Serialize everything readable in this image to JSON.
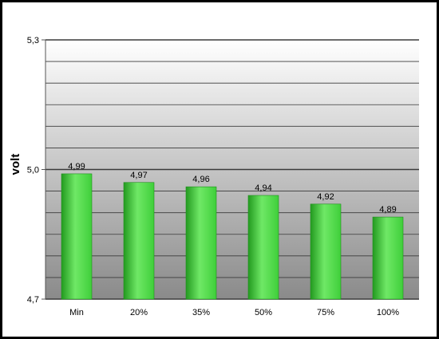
{
  "chart_data": {
    "type": "bar",
    "categories": [
      "Min",
      "20%",
      "35%",
      "50%",
      "75%",
      "100%"
    ],
    "values": [
      4.99,
      4.97,
      4.96,
      4.94,
      4.92,
      4.89
    ],
    "value_labels": [
      "4,99",
      "4,97",
      "4,96",
      "4,94",
      "4,92",
      "4,89"
    ],
    "title": "",
    "xlabel": "",
    "ylabel": "volt",
    "ylim": [
      4.7,
      5.3
    ],
    "yticks": [
      4.7,
      5.0,
      5.3
    ],
    "ytick_labels": [
      "4,7",
      "5,0",
      "5,3"
    ],
    "grid": true,
    "legend": "none",
    "colors": {
      "bar": "#3fcf3a",
      "bar_dark": "#239a20",
      "bar_light": "#6fe866",
      "plot_top": "#ffffff",
      "plot_bottom": "#8a8a8a",
      "gridline": "#3a3a3a",
      "frame": "#000000"
    }
  }
}
